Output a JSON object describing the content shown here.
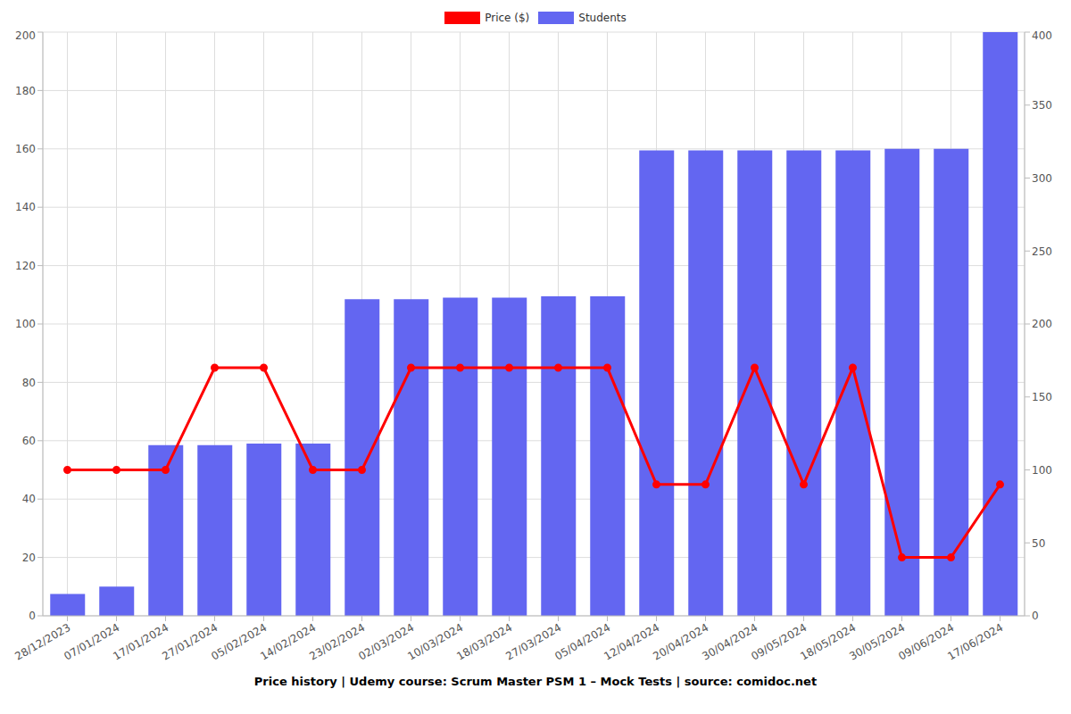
{
  "chart_data": {
    "type": "bar",
    "title": "Price history | Udemy course: Scrum Master PSM 1 – Mock Tests | source: comidoc.net",
    "categories": [
      "28/12/2023",
      "07/01/2024",
      "17/01/2024",
      "27/01/2024",
      "05/02/2024",
      "14/02/2024",
      "23/02/2024",
      "02/03/2024",
      "10/03/2024",
      "18/03/2024",
      "27/03/2024",
      "05/04/2024",
      "12/04/2024",
      "20/04/2024",
      "30/04/2024",
      "09/05/2024",
      "18/05/2024",
      "30/05/2024",
      "09/06/2024",
      "17/06/2024"
    ],
    "series": [
      {
        "name": "Price ($)",
        "type": "line",
        "color": "#ff0000",
        "marker": "circle",
        "values": [
          50,
          50,
          50,
          85,
          85,
          50,
          50,
          85,
          85,
          85,
          85,
          85,
          45,
          45,
          85,
          45,
          85,
          20,
          20,
          45
        ]
      },
      {
        "name": "Students",
        "type": "bar",
        "axis": "y2",
        "color": "#6366f1",
        "values": [
          15,
          20,
          117,
          117,
          118,
          118,
          217,
          217,
          218,
          218,
          219,
          219,
          319,
          319,
          319,
          319,
          319,
          320,
          320,
          400
        ]
      }
    ],
    "ylim": [
      0,
      200
    ],
    "yticks": [
      0,
      20,
      40,
      60,
      80,
      100,
      120,
      140,
      160,
      180,
      200
    ],
    "y2lim": [
      0,
      400
    ],
    "y2ticks": [
      0,
      50,
      100,
      150,
      200,
      250,
      300,
      350,
      400
    ],
    "grid": true,
    "legend": "top"
  }
}
